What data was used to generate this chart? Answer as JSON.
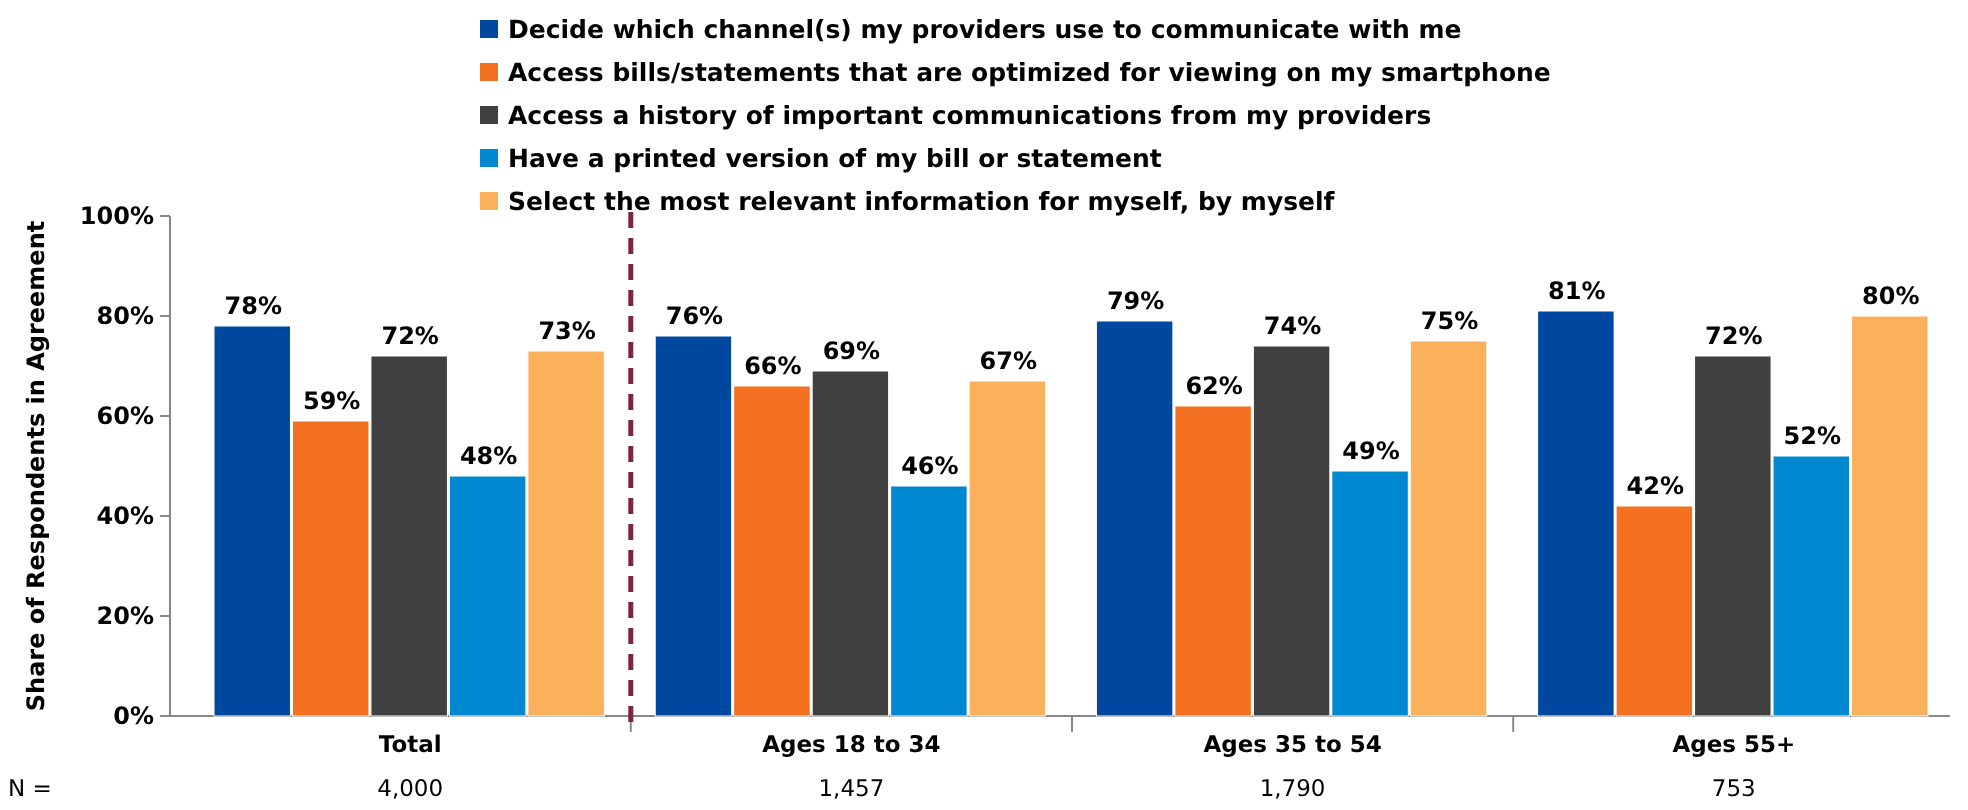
{
  "chart_data": {
    "type": "bar",
    "ylabel": "Share of Respondents in Agreement",
    "categories": [
      "Total",
      "Ages 18 to 34",
      "Ages 35 to 54",
      "Ages 55+"
    ],
    "series": [
      {
        "name": "Decide which channel(s) my providers use to communicate with me",
        "color": "#0047a0",
        "values": [
          78,
          76,
          79,
          81
        ]
      },
      {
        "name": "Access bills/statements that are optimized for viewing on my smartphone",
        "color": "#f37021",
        "values": [
          59,
          66,
          62,
          42
        ]
      },
      {
        "name": "Access a history of important communications from my providers",
        "color": "#404040",
        "values": [
          72,
          69,
          74,
          72
        ]
      },
      {
        "name": "Have a printed version of my bill or statement",
        "color": "#0088d1",
        "values": [
          48,
          46,
          49,
          52
        ]
      },
      {
        "name": "Select the most relevant information for myself, by myself",
        "color": "#fbb15b",
        "values": [
          73,
          67,
          75,
          80
        ]
      }
    ],
    "ylim": [
      0,
      100
    ],
    "yticks": [
      {
        "value": 0,
        "label": "0%"
      },
      {
        "value": 20,
        "label": "20%"
      },
      {
        "value": 40,
        "label": "40%"
      },
      {
        "value": 60,
        "label": "60%"
      },
      {
        "value": 80,
        "label": "80%"
      },
      {
        "value": 100,
        "label": "100%"
      }
    ],
    "value_labels": [
      [
        "78%",
        "76%",
        "79%",
        "81%"
      ],
      [
        "59%",
        "66%",
        "62%",
        "42%"
      ],
      [
        "72%",
        "69%",
        "74%",
        "72%"
      ],
      [
        "48%",
        "46%",
        "49%",
        "52%"
      ],
      [
        "73%",
        "67%",
        "75%",
        "80%"
      ]
    ],
    "legend": "top",
    "grid": false,
    "annotations": [
      "N =",
      "4,000",
      "1,457",
      "1,790",
      "753"
    ]
  }
}
